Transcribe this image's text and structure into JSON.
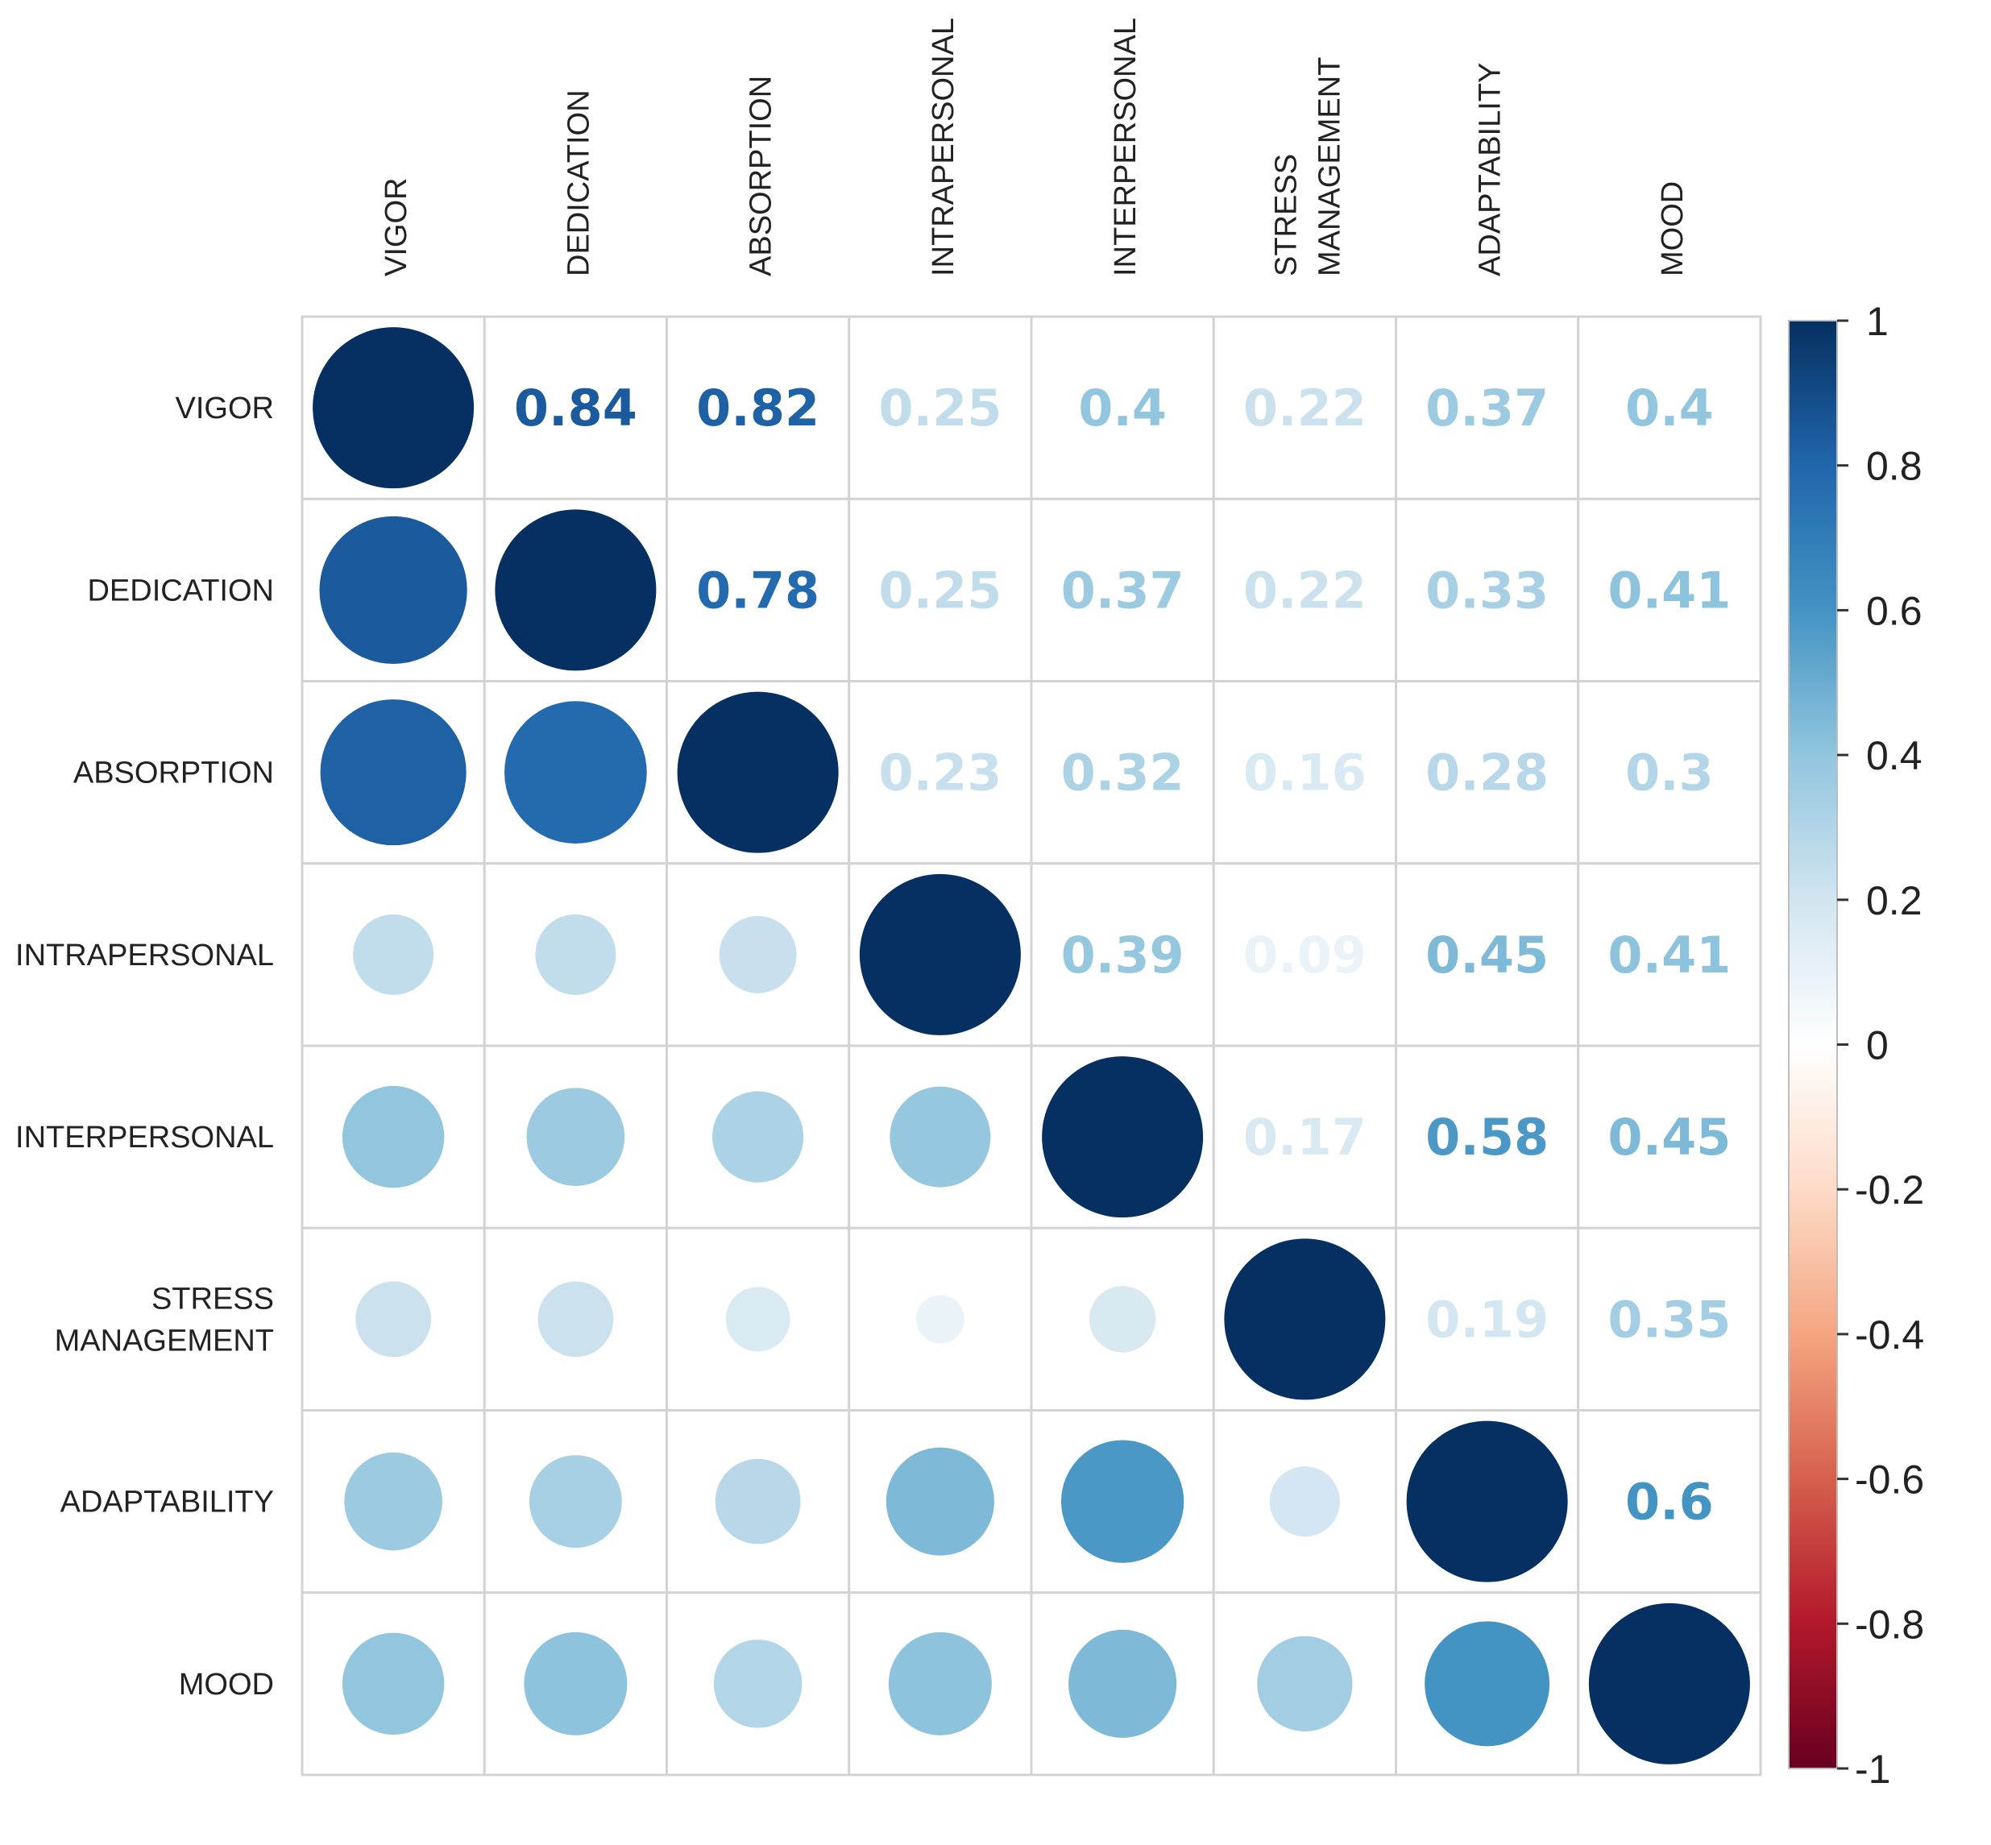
{
  "chart_data": {
    "type": "heatmap",
    "subtype": "correlation-matrix",
    "upper_triangle": "number",
    "lower_triangle": "circle",
    "diagonal": "circle",
    "variables": [
      {
        "label": "VIGOR",
        "col_lines": [
          "VIGOR"
        ],
        "row_lines": [
          "VIGOR"
        ]
      },
      {
        "label": "DEDICATION",
        "col_lines": [
          "DEDICATION"
        ],
        "row_lines": [
          "DEDICATION"
        ]
      },
      {
        "label": "ABSORPTION",
        "col_lines": [
          "ABSORPTION"
        ],
        "row_lines": [
          "ABSORPTION"
        ]
      },
      {
        "label": "INTRAPERSONAL",
        "col_lines": [
          "INTRAPERSONAL"
        ],
        "row_lines": [
          "INTRAPERSONAL"
        ]
      },
      {
        "label": "INTERPERSONAL",
        "col_lines": [
          "INTERPERSONAL"
        ],
        "row_lines": [
          "INTERPERSONAL"
        ]
      },
      {
        "label": "STRESS MANAGEMENT",
        "col_lines": [
          "STRESS",
          "MANAGEMENT"
        ],
        "row_lines": [
          "STRESS",
          "MANAGEMENT"
        ]
      },
      {
        "label": "ADAPTABILITY",
        "col_lines": [
          "ADAPTABILITY"
        ],
        "row_lines": [
          "ADAPTABILITY"
        ]
      },
      {
        "label": "MOOD",
        "col_lines": [
          "MOOD"
        ],
        "row_lines": [
          "MOOD"
        ]
      }
    ],
    "matrix": [
      [
        1,
        0.84,
        0.82,
        0.25,
        0.4,
        0.22,
        0.37,
        0.4
      ],
      [
        0.84,
        1,
        0.78,
        0.25,
        0.37,
        0.22,
        0.33,
        0.41
      ],
      [
        0.82,
        0.78,
        1,
        0.23,
        0.32,
        0.16,
        0.28,
        0.3
      ],
      [
        0.25,
        0.25,
        0.23,
        1,
        0.39,
        0.09,
        0.45,
        0.41
      ],
      [
        0.4,
        0.37,
        0.32,
        0.39,
        1,
        0.17,
        0.58,
        0.45
      ],
      [
        0.22,
        0.22,
        0.16,
        0.09,
        0.17,
        1,
        0.19,
        0.35
      ],
      [
        0.37,
        0.33,
        0.28,
        0.45,
        0.58,
        0.19,
        1,
        0.6
      ],
      [
        0.4,
        0.41,
        0.3,
        0.41,
        0.45,
        0.35,
        0.6,
        1
      ]
    ],
    "legend": {
      "range": [
        -1,
        1
      ],
      "ticks": [
        1,
        0.8,
        0.6,
        0.4,
        0.2,
        0,
        -0.2,
        -0.4,
        -0.6,
        -0.8,
        -1
      ],
      "tick_labels": [
        "1",
        "0.8",
        "0.6",
        "0.4",
        "0.2",
        "0",
        "-0.2",
        "-0.4",
        "-0.6",
        "-0.8",
        "-1"
      ],
      "placement": "right"
    },
    "colors": {
      "negative_end": "#67001F",
      "zero": "#FFFFFF",
      "positive_end": "#053061",
      "stops": [
        "#67001F",
        "#B2182B",
        "#D6604D",
        "#F4A582",
        "#FDDBC7",
        "#FFFFFF",
        "#D1E5F0",
        "#92C5DE",
        "#4393C3",
        "#2166AC",
        "#053061"
      ]
    }
  }
}
